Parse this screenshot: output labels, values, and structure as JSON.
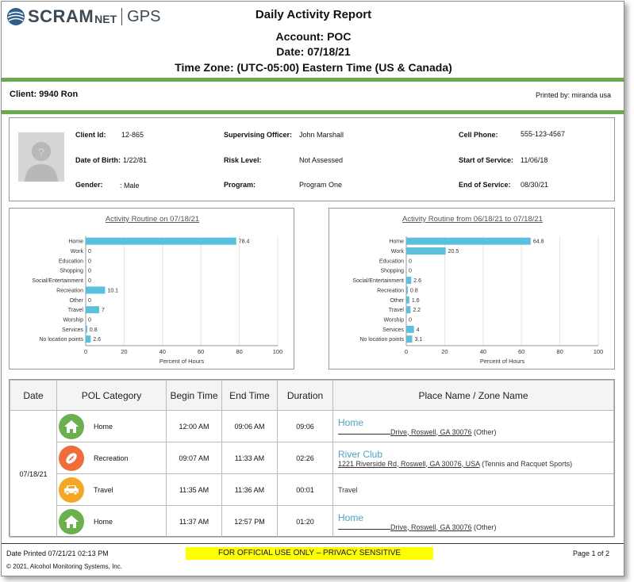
{
  "logo": {
    "brand": "SCRAM",
    "net": "NET",
    "gps": "GPS"
  },
  "report": {
    "title": "Daily Activity Report",
    "account": "Account: POC",
    "date": "Date: 07/18/21",
    "timezone": "Time Zone: (UTC-05:00) Eastern Time (US & Canada)"
  },
  "client_line": "Client: 9940 Ron",
  "printed_by": "Printed by: miranda usa",
  "info": {
    "client_id_label": "Client Id:",
    "client_id": "12-865",
    "dob_label": "Date of Birth:",
    "dob": "1/22/81",
    "gender_label": "Gender:",
    "gender": ": Male",
    "officer_label": "Supervising Officer:",
    "officer": "John Marshall",
    "risk_label": "Risk Level:",
    "risk": "Not Assessed",
    "program_label": "Program:",
    "program": "Program One",
    "phone_label": "Cell Phone:",
    "phone": "555-123-4567",
    "start_label": "Start of Service:",
    "start": "11/06/18",
    "end_label": "End of Service:",
    "end": "08/30/21"
  },
  "chart_data": [
    {
      "type": "bar",
      "orientation": "horizontal",
      "title": "Activity Routine on 07/18/21",
      "xlabel": "Percent of Hours",
      "xlim": [
        0,
        100
      ],
      "xticks": [
        "0",
        "20",
        "40",
        "60",
        "80",
        "100"
      ],
      "categories": [
        "Home",
        "Work",
        "Education",
        "Shopping",
        "Social/Entertainment",
        "Recreation",
        "Other",
        "Travel",
        "Worship",
        "Services",
        "No location points"
      ],
      "values": [
        78.4,
        0,
        0,
        0,
        0,
        10.1,
        0,
        7,
        0,
        0.8,
        2.6
      ],
      "value_labels": [
        "78.4",
        "0",
        "0",
        "0",
        "0",
        "10.1",
        "0",
        "7",
        "0",
        "0.8",
        "2.6"
      ],
      "bar_color": "#5bc0de"
    },
    {
      "type": "bar",
      "orientation": "horizontal",
      "title": "Activity Routine from 06/18/21 to 07/18/21",
      "xlabel": "Percent of Hours",
      "xlim": [
        0,
        100
      ],
      "xticks": [
        "0",
        "20",
        "40",
        "60",
        "80",
        "100"
      ],
      "categories": [
        "Home",
        "Work",
        "Education",
        "Shopping",
        "Social/Entertainment",
        "Recreation",
        "Other",
        "Travel",
        "Worship",
        "Services",
        "No location points"
      ],
      "values": [
        64.8,
        20.5,
        0,
        0,
        2.6,
        0.8,
        1.6,
        2.2,
        0,
        4,
        3.1
      ],
      "value_labels": [
        "64.8",
        "20.5",
        "0",
        "0",
        "2.6",
        "0.8",
        "1.6",
        "2.2",
        "0",
        "4",
        "3.1"
      ],
      "bar_color": "#5bc0de"
    }
  ],
  "table": {
    "headers": [
      "Date",
      "POL Category",
      "Begin Time",
      "End Time",
      "Duration",
      "Place Name / Zone Name"
    ],
    "date": "07/18/21",
    "rows": [
      {
        "category": "Home",
        "icon": "home-icon",
        "color": "#6ab04c",
        "begin": "12:00 AM",
        "end": "09:06 AM",
        "duration": "09:06",
        "place": "Home",
        "addr": "Drive, Roswell, GA 30076",
        "zone": " (Other)"
      },
      {
        "category": "Recreation",
        "icon": "football-icon",
        "color": "#f26b3a",
        "begin": "09:07 AM",
        "end": "11:33 AM",
        "duration": "02:26",
        "place": "River Club",
        "addr": "1221 Riverside Rd, Roswell, GA 30076, USA",
        "zone": " (Tennis and Racquet Sports)"
      },
      {
        "category": "Travel",
        "icon": "car-icon",
        "color": "#f5a623",
        "begin": "11:35 AM",
        "end": "11:36 AM",
        "duration": "00:01",
        "place": "",
        "addr": "",
        "zone": "Travel"
      },
      {
        "category": "Home",
        "icon": "home-icon",
        "color": "#6ab04c",
        "begin": "11:37 AM",
        "end": "12:57 PM",
        "duration": "01:20",
        "place": "Home",
        "addr": "Drive, Roswell, GA 30076",
        "zone": " (Other)"
      }
    ]
  },
  "footer": {
    "printed": "Date Printed 07/21/21 02:13 PM",
    "banner": "FOR OFFICIAL USE ONLY – PRIVACY SENSITIVE",
    "page": "Page 1 of 2",
    "copyright": "© 2021, Alcohol Monitoring Systems, Inc."
  }
}
